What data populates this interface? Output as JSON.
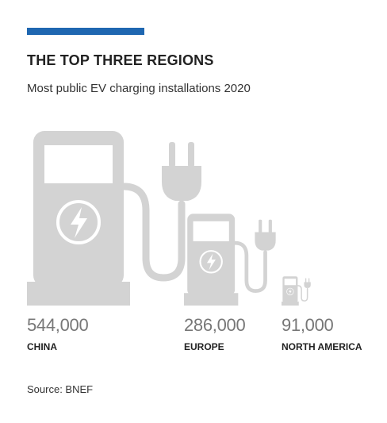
{
  "header": {
    "accent_color": "#1f67b1",
    "title": "THE TOP THREE REGIONS",
    "subtitle": "Most public EV charging installations 2020"
  },
  "chart_data": {
    "type": "bar",
    "title": "THE TOP THREE REGIONS",
    "subtitle": "Most public EV charging installations 2020",
    "categories": [
      "CHINA",
      "EUROPE",
      "NORTH AMERICA"
    ],
    "values": [
      544000,
      286000,
      91000
    ],
    "value_labels": [
      "544,000",
      "286,000",
      "91,000"
    ],
    "mark": "ev-charger-icon",
    "mark_color": "#d3d3d3",
    "xlabel": "",
    "ylabel": "",
    "grid": false
  },
  "footer": {
    "source": "Source: BNEF"
  }
}
